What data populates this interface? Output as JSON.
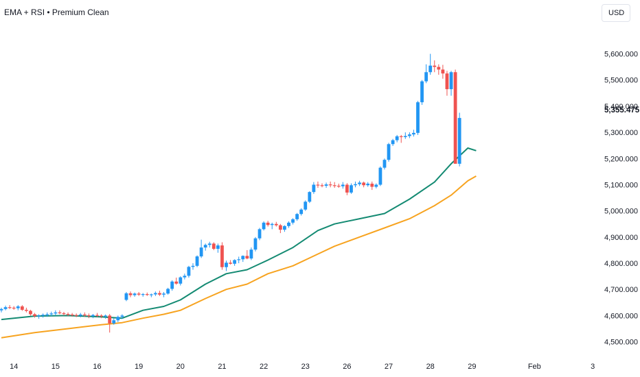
{
  "indicator": {
    "title": "EMA + RSI • Premium Clean"
  },
  "currency": {
    "label": "USD"
  },
  "last_price": "5,355.475",
  "chart_data": {
    "type": "candlestick",
    "y_axis_labels": [
      "5,600.000",
      "5,500.000",
      "5,400.000",
      "5,300.000",
      "5,200.000",
      "5,100.000",
      "5,000.000",
      "4,900.000",
      "4,800.000",
      "4,700.000",
      "4,600.000",
      "4,500.000"
    ],
    "y_axis_values": [
      5600,
      5500,
      5400,
      5300,
      5200,
      5100,
      5000,
      4900,
      4800,
      4700,
      4600,
      4500
    ],
    "ylim": [
      4470,
      5680
    ],
    "x_axis_labels": [
      {
        "label": "14",
        "i": 3
      },
      {
        "label": "15",
        "i": 13
      },
      {
        "label": "16",
        "i": 23
      },
      {
        "label": "19",
        "i": 33
      },
      {
        "label": "20",
        "i": 43
      },
      {
        "label": "21",
        "i": 53
      },
      {
        "label": "22",
        "i": 63
      },
      {
        "label": "23",
        "i": 73
      },
      {
        "label": "26",
        "i": 83
      },
      {
        "label": "27",
        "i": 93
      },
      {
        "label": "28",
        "i": 103
      },
      {
        "label": "29",
        "i": 113
      },
      {
        "label": "Feb",
        "i": 128
      },
      {
        "label": "3",
        "i": 142
      }
    ],
    "candles": [
      [
        4620,
        4630,
        4612,
        4625
      ],
      [
        4625,
        4638,
        4620,
        4632
      ],
      [
        4632,
        4640,
        4625,
        4630
      ],
      [
        4630,
        4636,
        4622,
        4628
      ],
      [
        4628,
        4640,
        4620,
        4635
      ],
      [
        4635,
        4640,
        4618,
        4622
      ],
      [
        4622,
        4630,
        4612,
        4618
      ],
      [
        4618,
        4622,
        4600,
        4605
      ],
      [
        4605,
        4610,
        4592,
        4598
      ],
      [
        4598,
        4605,
        4588,
        4600
      ],
      [
        4600,
        4608,
        4592,
        4603
      ],
      [
        4603,
        4612,
        4595,
        4605
      ],
      [
        4605,
        4615,
        4598,
        4608
      ],
      [
        4608,
        4620,
        4600,
        4612
      ],
      [
        4612,
        4620,
        4605,
        4609
      ],
      [
        4609,
        4614,
        4600,
        4606
      ],
      [
        4606,
        4612,
        4598,
        4604
      ],
      [
        4604,
        4610,
        4596,
        4602
      ],
      [
        4602,
        4608,
        4594,
        4600
      ],
      [
        4600,
        4610,
        4593,
        4604
      ],
      [
        4604,
        4612,
        4595,
        4601
      ],
      [
        4601,
        4608,
        4590,
        4598
      ],
      [
        4598,
        4606,
        4590,
        4602
      ],
      [
        4602,
        4610,
        4594,
        4600
      ],
      [
        4600,
        4605,
        4590,
        4597
      ],
      [
        4597,
        4604,
        4588,
        4600
      ],
      [
        4600,
        4606,
        4535,
        4570
      ],
      [
        4570,
        4590,
        4565,
        4582
      ],
      [
        4582,
        4600,
        4575,
        4595
      ],
      [
        4595,
        4605,
        4588,
        4600
      ],
      [
        4660,
        4690,
        4655,
        4685
      ],
      [
        4685,
        4692,
        4670,
        4678
      ],
      [
        4678,
        4688,
        4672,
        4684
      ],
      [
        4684,
        4690,
        4675,
        4680
      ],
      [
        4680,
        4686,
        4672,
        4682
      ],
      [
        4682,
        4688,
        4675,
        4679
      ],
      [
        4679,
        4684,
        4670,
        4681
      ],
      [
        4681,
        4692,
        4675,
        4686
      ],
      [
        4686,
        4695,
        4675,
        4680
      ],
      [
        4680,
        4690,
        4670,
        4684
      ],
      [
        4684,
        4706,
        4680,
        4702
      ],
      [
        4702,
        4735,
        4695,
        4730
      ],
      [
        4730,
        4745,
        4718,
        4722
      ],
      [
        4722,
        4750,
        4715,
        4746
      ],
      [
        4746,
        4760,
        4738,
        4752
      ],
      [
        4752,
        4790,
        4745,
        4786
      ],
      [
        4786,
        4800,
        4775,
        4790
      ],
      [
        4790,
        4830,
        4785,
        4826
      ],
      [
        4826,
        4890,
        4820,
        4860
      ],
      [
        4860,
        4875,
        4848,
        4870
      ],
      [
        4870,
        4882,
        4860,
        4875
      ],
      [
        4875,
        4880,
        4850,
        4855
      ],
      [
        4855,
        4875,
        4840,
        4868
      ],
      [
        4868,
        4880,
        4775,
        4785
      ],
      [
        4785,
        4810,
        4770,
        4802
      ],
      [
        4802,
        4812,
        4795,
        4798
      ],
      [
        4798,
        4815,
        4790,
        4812
      ],
      [
        4812,
        4825,
        4800,
        4815
      ],
      [
        4815,
        4830,
        4805,
        4828
      ],
      [
        4828,
        4850,
        4815,
        4818
      ],
      [
        4818,
        4860,
        4812,
        4852
      ],
      [
        4852,
        4900,
        4845,
        4895
      ],
      [
        4895,
        4935,
        4888,
        4930
      ],
      [
        4930,
        4960,
        4925,
        4955
      ],
      [
        4955,
        4962,
        4940,
        4946
      ],
      [
        4946,
        4955,
        4930,
        4950
      ],
      [
        4950,
        4958,
        4940,
        4945
      ],
      [
        4945,
        4950,
        4915,
        4928
      ],
      [
        4928,
        4945,
        4920,
        4942
      ],
      [
        4942,
        4960,
        4935,
        4955
      ],
      [
        4955,
        4972,
        4948,
        4968
      ],
      [
        4968,
        4992,
        4962,
        4988
      ],
      [
        4988,
        5010,
        4982,
        5005
      ],
      [
        5005,
        5040,
        5000,
        5035
      ],
      [
        5035,
        5075,
        5030,
        5072
      ],
      [
        5072,
        5110,
        5065,
        5100
      ],
      [
        5100,
        5112,
        5088,
        5098
      ],
      [
        5098,
        5105,
        5090,
        5096
      ],
      [
        5096,
        5108,
        5088,
        5101
      ],
      [
        5101,
        5112,
        5090,
        5098
      ],
      [
        5098,
        5110,
        5088,
        5096
      ],
      [
        5096,
        5104,
        5088,
        5094
      ],
      [
        5094,
        5110,
        5085,
        5100
      ],
      [
        5100,
        5106,
        5060,
        5070
      ],
      [
        5070,
        5105,
        5065,
        5098
      ],
      [
        5098,
        5112,
        5090,
        5102
      ],
      [
        5102,
        5115,
        5095,
        5108
      ],
      [
        5108,
        5112,
        5090,
        5098
      ],
      [
        5098,
        5110,
        5092,
        5104
      ],
      [
        5104,
        5112,
        5080,
        5092
      ],
      [
        5092,
        5105,
        5086,
        5100
      ],
      [
        5100,
        5170,
        5095,
        5165
      ],
      [
        5165,
        5200,
        5158,
        5195
      ],
      [
        5195,
        5260,
        5188,
        5255
      ],
      [
        5255,
        5275,
        5248,
        5270
      ],
      [
        5270,
        5290,
        5262,
        5285
      ],
      [
        5285,
        5290,
        5260,
        5282
      ],
      [
        5282,
        5300,
        5275,
        5286
      ],
      [
        5286,
        5300,
        5278,
        5292
      ],
      [
        5292,
        5310,
        5284,
        5298
      ],
      [
        5298,
        5420,
        5290,
        5415
      ],
      [
        5415,
        5500,
        5405,
        5495
      ],
      [
        5495,
        5560,
        5488,
        5530
      ],
      [
        5530,
        5600,
        5520,
        5555
      ],
      [
        5555,
        5575,
        5530,
        5550
      ],
      [
        5550,
        5560,
        5520,
        5540
      ],
      [
        5540,
        5558,
        5505,
        5525
      ],
      [
        5525,
        5535,
        5440,
        5465
      ],
      [
        5465,
        5535,
        5440,
        5530
      ],
      [
        5530,
        5540,
        5180,
        5180
      ],
      [
        5180,
        5375,
        5170,
        5355
      ]
    ],
    "candle_indices": [
      0,
      1,
      2,
      3,
      4,
      5,
      6,
      7,
      8,
      9,
      10,
      11,
      12,
      13,
      14,
      15,
      16,
      17,
      18,
      19,
      20,
      21,
      22,
      23,
      24,
      25,
      26,
      27,
      28,
      29,
      30,
      31,
      32,
      33,
      34,
      35,
      36,
      37,
      38,
      39,
      40,
      41,
      42,
      43,
      44,
      45,
      46,
      47,
      48,
      49,
      50,
      51,
      52,
      53,
      54,
      55,
      56,
      57,
      58,
      59,
      60,
      61,
      62,
      63,
      64,
      65,
      66,
      67,
      68,
      69,
      70,
      71,
      72,
      73,
      74,
      75,
      76,
      77,
      78,
      79,
      80,
      81,
      82,
      83,
      84,
      85,
      86,
      87,
      88,
      89,
      90,
      91,
      92,
      93,
      94,
      95,
      96,
      97,
      98,
      99,
      100,
      101,
      102,
      103,
      104,
      105,
      106,
      107,
      108,
      109,
      110,
      111,
      112,
      113,
      114
    ],
    "series": [
      {
        "type": "ema",
        "color": "#138a72",
        "points": [
          [
            0,
            4585
          ],
          [
            8,
            4598
          ],
          [
            16,
            4600
          ],
          [
            24,
            4595
          ],
          [
            29,
            4590
          ],
          [
            34,
            4620
          ],
          [
            39,
            4635
          ],
          [
            43,
            4660
          ],
          [
            49,
            4720
          ],
          [
            54,
            4760
          ],
          [
            59,
            4775
          ],
          [
            64,
            4812
          ],
          [
            70,
            4860
          ],
          [
            76,
            4925
          ],
          [
            80,
            4950
          ],
          [
            86,
            4970
          ],
          [
            92,
            4990
          ],
          [
            98,
            5045
          ],
          [
            104,
            5110
          ],
          [
            108,
            5180
          ],
          [
            112,
            5240
          ],
          [
            114,
            5230
          ]
        ]
      },
      {
        "type": "ema",
        "color": "#f7a31f",
        "points": [
          [
            0,
            4515
          ],
          [
            8,
            4535
          ],
          [
            16,
            4550
          ],
          [
            24,
            4565
          ],
          [
            29,
            4573
          ],
          [
            34,
            4590
          ],
          [
            39,
            4605
          ],
          [
            43,
            4620
          ],
          [
            49,
            4665
          ],
          [
            54,
            4700
          ],
          [
            59,
            4720
          ],
          [
            64,
            4760
          ],
          [
            70,
            4790
          ],
          [
            76,
            4835
          ],
          [
            80,
            4865
          ],
          [
            86,
            4900
          ],
          [
            92,
            4935
          ],
          [
            98,
            4970
          ],
          [
            104,
            5020
          ],
          [
            108,
            5060
          ],
          [
            112,
            5115
          ],
          [
            114,
            5133
          ]
        ]
      }
    ],
    "up_color": "#2196f3",
    "down_color": "#ef5350"
  }
}
